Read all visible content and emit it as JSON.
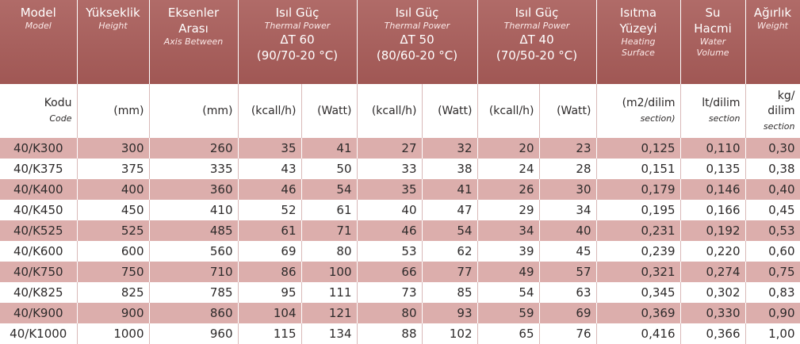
{
  "header": [
    {
      "title": [
        "Model"
      ],
      "subtitle": [
        "Model"
      ]
    },
    {
      "title": [
        "Yükseklik"
      ],
      "subtitle": [
        "Height"
      ]
    },
    {
      "title": [
        "Eksenler",
        "Arası"
      ],
      "subtitle": [
        "Axis Between"
      ]
    },
    {
      "title": [
        "Isıl Güç"
      ],
      "subtitle": [
        "Thermal Power"
      ],
      "lines": [
        "ΔT 60",
        "(90/70-20 °C)"
      ]
    },
    {
      "title": [
        "Isıl Güç"
      ],
      "subtitle": [
        "Thermal Power"
      ],
      "lines": [
        "ΔT 50",
        "(80/60-20 °C)"
      ]
    },
    {
      "title": [
        "Isıl Güç"
      ],
      "subtitle": [
        "Thermal Power"
      ],
      "lines": [
        "ΔT 40",
        "(70/50-20 °C)"
      ]
    },
    {
      "title": [
        "Isıtma",
        "Yüzeyi"
      ],
      "subtitle": [
        "Heating",
        "Surface"
      ]
    },
    {
      "title": [
        "Su",
        "Hacmi"
      ],
      "subtitle": [
        "Water",
        "Volume"
      ]
    },
    {
      "title": [
        "Ağırlık"
      ],
      "subtitle": [
        "Weight"
      ]
    }
  ],
  "units": [
    {
      "main": [
        "Kodu"
      ],
      "sub": "Code"
    },
    {
      "main": [
        "(mm)"
      ]
    },
    {
      "main": [
        "(mm)"
      ]
    },
    {
      "main": [
        "(kcall/h)"
      ]
    },
    {
      "main": [
        "(Watt)"
      ]
    },
    {
      "main": [
        "(kcall/h)"
      ]
    },
    {
      "main": [
        "(Watt)"
      ]
    },
    {
      "main": [
        "(kcall/h)"
      ]
    },
    {
      "main": [
        "(Watt)"
      ]
    },
    {
      "main": [
        "(m2/dilim"
      ],
      "sub": "section)"
    },
    {
      "main": [
        "lt/dilim"
      ],
      "sub": "section"
    },
    {
      "main": [
        "kg/",
        "dilim"
      ],
      "sub": "section"
    }
  ],
  "rows": [
    [
      "40/K300",
      300,
      260,
      35,
      41,
      27,
      32,
      20,
      23,
      "0,125",
      "0,110",
      "0,30"
    ],
    [
      "40/K375",
      375,
      335,
      43,
      50,
      33,
      38,
      24,
      28,
      "0,151",
      "0,135",
      "0,38"
    ],
    [
      "40/K400",
      400,
      360,
      46,
      54,
      35,
      41,
      26,
      30,
      "0,179",
      "0,146",
      "0,40"
    ],
    [
      "40/K450",
      450,
      410,
      52,
      61,
      40,
      47,
      29,
      34,
      "0,195",
      "0,166",
      "0,45"
    ],
    [
      "40/K525",
      525,
      485,
      61,
      71,
      46,
      54,
      34,
      40,
      "0,231",
      "0,192",
      "0,53"
    ],
    [
      "40/K600",
      600,
      560,
      69,
      80,
      53,
      62,
      39,
      45,
      "0,239",
      "0,220",
      "0,60"
    ],
    [
      "40/K750",
      750,
      710,
      86,
      100,
      66,
      77,
      49,
      57,
      "0,321",
      "0,274",
      "0,75"
    ],
    [
      "40/K825",
      825,
      785,
      95,
      111,
      73,
      85,
      54,
      63,
      "0,345",
      "0,302",
      "0,83"
    ],
    [
      "40/K900",
      900,
      860,
      104,
      121,
      80,
      93,
      59,
      69,
      "0,369",
      "0,330",
      "0,90"
    ],
    [
      "40/K1000",
      1000,
      960,
      115,
      134,
      88,
      102,
      65,
      76,
      "0,416",
      "0,366",
      "1,00"
    ]
  ]
}
